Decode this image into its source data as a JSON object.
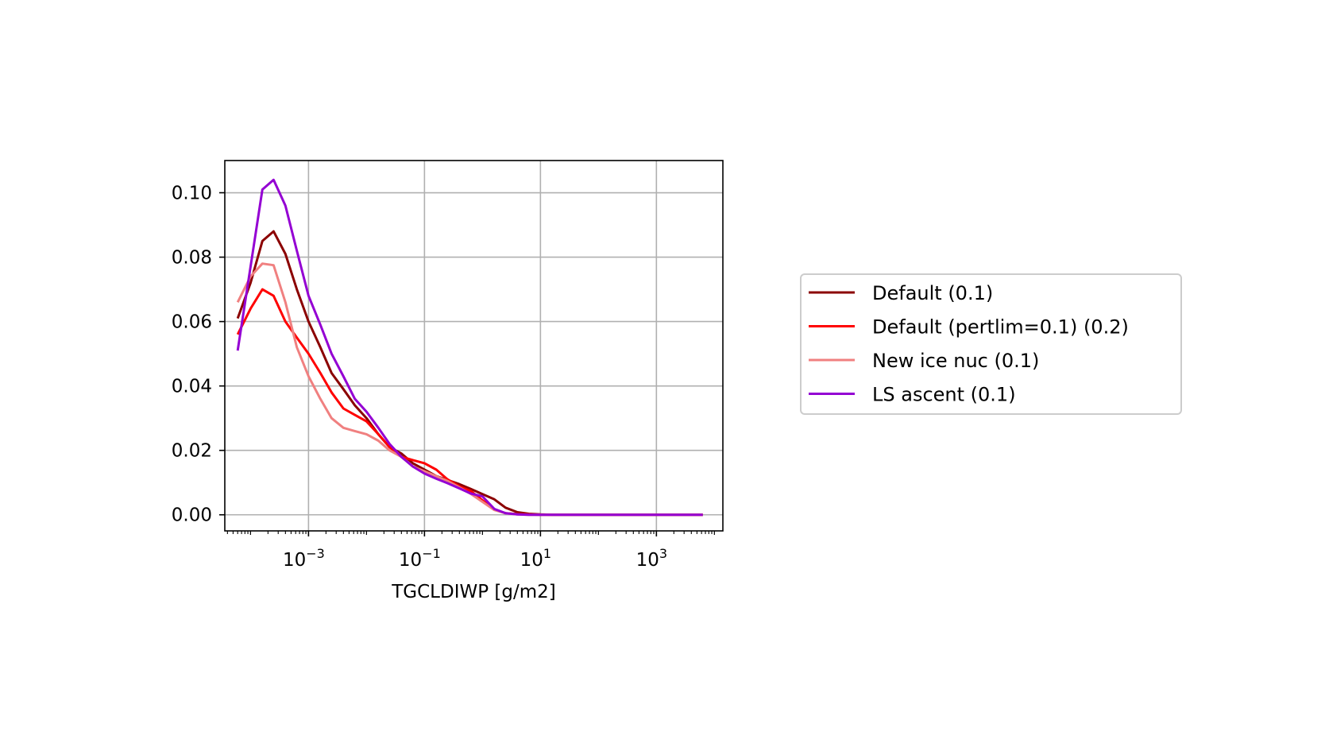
{
  "chart_data": {
    "type": "line",
    "title": "",
    "xlabel": "TGCLDIWP [g/m2]",
    "ylabel": "",
    "xscale": "log",
    "xlim": [
      3.6e-05,
      14000
    ],
    "ylim": [
      -0.005,
      0.11
    ],
    "xticks": [
      {
        "value": 0.001,
        "base": "10",
        "exp": "−3"
      },
      {
        "value": 0.1,
        "base": "10",
        "exp": "−1"
      },
      {
        "value": 10,
        "base": "10",
        "exp": "1"
      },
      {
        "value": 1000,
        "base": "10",
        "exp": "3"
      }
    ],
    "yticks": [
      {
        "value": 0.0,
        "label": "0.00"
      },
      {
        "value": 0.02,
        "label": "0.02"
      },
      {
        "value": 0.04,
        "label": "0.04"
      },
      {
        "value": 0.06,
        "label": "0.06"
      },
      {
        "value": 0.08,
        "label": "0.08"
      },
      {
        "value": 0.1,
        "label": "0.10"
      }
    ],
    "grid": true,
    "legend_position": "right, outside plot",
    "series": [
      {
        "name": "Default (0.1)",
        "color": "#8b0000",
        "x": [
          6e-05,
          0.0001,
          0.00016,
          0.00025,
          0.0004,
          0.00063,
          0.001,
          0.0016,
          0.0025,
          0.004,
          0.0063,
          0.01,
          0.016,
          0.025,
          0.04,
          0.063,
          0.1,
          0.16,
          0.25,
          0.4,
          0.63,
          1,
          1.6,
          2.5,
          4,
          6.3,
          10,
          16,
          25,
          40,
          63,
          100,
          160,
          250,
          400,
          630,
          1000,
          1600,
          2500,
          4000,
          6300
        ],
        "y": [
          0.061,
          0.072,
          0.085,
          0.088,
          0.081,
          0.07,
          0.06,
          0.052,
          0.044,
          0.039,
          0.034,
          0.03,
          0.025,
          0.021,
          0.019,
          0.016,
          0.014,
          0.012,
          0.0108,
          0.0095,
          0.008,
          0.0064,
          0.0048,
          0.0022,
          0.0008,
          0.0003,
          0.0001,
          0,
          0,
          0,
          0,
          0,
          0,
          0,
          0,
          0,
          0,
          0,
          0,
          0,
          0
        ]
      },
      {
        "name": "Default (pertlim=0.1) (0.2)",
        "color": "#ff0000",
        "x": [
          6e-05,
          0.0001,
          0.00016,
          0.00025,
          0.0004,
          0.00063,
          0.001,
          0.0016,
          0.0025,
          0.004,
          0.0063,
          0.01,
          0.016,
          0.025,
          0.04,
          0.063,
          0.1,
          0.16,
          0.25,
          0.4,
          0.63,
          1,
          1.6,
          2.5,
          4,
          6.3,
          10,
          16,
          25,
          40,
          63,
          100,
          160,
          250,
          400,
          630,
          1000,
          1600,
          2500,
          4000,
          6300
        ],
        "y": [
          0.056,
          0.064,
          0.07,
          0.068,
          0.06,
          0.055,
          0.05,
          0.044,
          0.038,
          0.033,
          0.031,
          0.029,
          0.025,
          0.021,
          0.018,
          0.017,
          0.016,
          0.014,
          0.011,
          0.0088,
          0.0074,
          0.0045,
          0.0016,
          0.0005,
          0.0002,
          0.0001,
          0,
          0,
          0,
          0,
          0,
          0,
          0,
          0,
          0,
          0,
          0,
          0,
          0,
          0,
          0
        ]
      },
      {
        "name": "New ice nuc (0.1)",
        "color": "#f08080",
        "x": [
          6e-05,
          0.0001,
          0.00016,
          0.00025,
          0.0004,
          0.00063,
          0.001,
          0.0016,
          0.0025,
          0.004,
          0.0063,
          0.01,
          0.016,
          0.025,
          0.04,
          0.063,
          0.1,
          0.16,
          0.25,
          0.4,
          0.63,
          1,
          1.6,
          2.5,
          4,
          6.3,
          10,
          16,
          25,
          40,
          63,
          100,
          160,
          250,
          400,
          630,
          1000,
          1600,
          2500,
          4000,
          6300
        ],
        "y": [
          0.066,
          0.074,
          0.078,
          0.0775,
          0.066,
          0.052,
          0.043,
          0.036,
          0.03,
          0.027,
          0.026,
          0.025,
          0.023,
          0.02,
          0.018,
          0.015,
          0.0135,
          0.012,
          0.0105,
          0.0085,
          0.0065,
          0.004,
          0.0015,
          0.0005,
          0.0001,
          0,
          0,
          0,
          0,
          0,
          0,
          0,
          0,
          0,
          0,
          0,
          0,
          0,
          0,
          0,
          0
        ]
      },
      {
        "name": "LS ascent (0.1)",
        "color": "#9400d3",
        "x": [
          6e-05,
          0.0001,
          0.00016,
          0.00025,
          0.0004,
          0.00063,
          0.001,
          0.0016,
          0.0025,
          0.004,
          0.0063,
          0.01,
          0.016,
          0.025,
          0.04,
          0.063,
          0.1,
          0.16,
          0.25,
          0.4,
          0.63,
          1,
          1.6,
          2.5,
          4,
          6.3,
          10,
          16,
          25,
          40,
          63,
          100,
          160,
          250,
          400,
          630,
          1000,
          1600,
          2500,
          4000,
          6300
        ],
        "y": [
          0.051,
          0.077,
          0.101,
          0.104,
          0.096,
          0.082,
          0.068,
          0.059,
          0.05,
          0.043,
          0.036,
          0.032,
          0.027,
          0.022,
          0.018,
          0.015,
          0.0128,
          0.0112,
          0.0098,
          0.0082,
          0.0066,
          0.0057,
          0.0018,
          0.0005,
          0.0001,
          0,
          0,
          0,
          0,
          0,
          0,
          0,
          0,
          0,
          0,
          0,
          0,
          0,
          0,
          0,
          0
        ]
      }
    ]
  }
}
